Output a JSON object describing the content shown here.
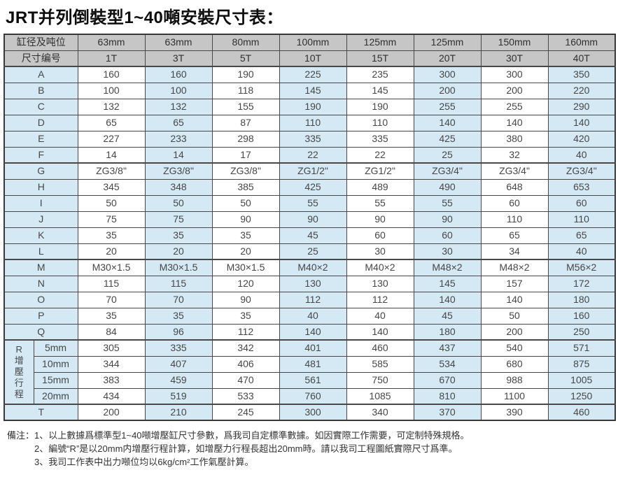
{
  "title": "JRT并列倒裝型1~40噸安裝尺寸表：",
  "colors": {
    "header_bg": "#c6c6c6",
    "cell_blue_bg": "#d5e9f5",
    "cell_white_bg": "#ffffff",
    "border": "#484848"
  },
  "table": {
    "header_rows": [
      {
        "label": "缸径及吨位",
        "cells": [
          "63mm",
          "63mm",
          "80mm",
          "100mm",
          "125mm",
          "125mm",
          "150mm",
          "160mm"
        ]
      },
      {
        "label": "尺寸编号",
        "cells": [
          "1T",
          "3T",
          "5T",
          "10T",
          "15T",
          "20T",
          "30T",
          "40T"
        ]
      }
    ],
    "rows": [
      {
        "label": "A",
        "values": [
          "160",
          "160",
          "190",
          "225",
          "235",
          "300",
          "300",
          "350"
        ]
      },
      {
        "label": "B",
        "values": [
          "100",
          "100",
          "118",
          "145",
          "145",
          "200",
          "200",
          "220"
        ]
      },
      {
        "label": "C",
        "values": [
          "132",
          "132",
          "155",
          "190",
          "190",
          "255",
          "255",
          "290"
        ]
      },
      {
        "label": "D",
        "values": [
          "65",
          "65",
          "87",
          "110",
          "110",
          "140",
          "140",
          "140"
        ]
      },
      {
        "label": "E",
        "values": [
          "227",
          "233",
          "298",
          "335",
          "335",
          "425",
          "380",
          "420"
        ]
      },
      {
        "label": "F",
        "values": [
          "14",
          "14",
          "17",
          "22",
          "22",
          "25",
          "32",
          "40"
        ]
      },
      {
        "label": "G",
        "group_start": true,
        "values": [
          "ZG3/8\"",
          "ZG3/8\"",
          "ZG3/8\"",
          "ZG1/2\"",
          "ZG1/2\"",
          "ZG3/4\"",
          "ZG3/4\"",
          "ZG3/4\""
        ]
      },
      {
        "label": "H",
        "values": [
          "345",
          "348",
          "385",
          "425",
          "489",
          "490",
          "648",
          "653"
        ]
      },
      {
        "label": "I",
        "values": [
          "50",
          "50",
          "50",
          "55",
          "55",
          "55",
          "60",
          "60"
        ]
      },
      {
        "label": "J",
        "values": [
          "75",
          "75",
          "90",
          "90",
          "90",
          "90",
          "110",
          "110"
        ]
      },
      {
        "label": "K",
        "values": [
          "35",
          "35",
          "35",
          "45",
          "60",
          "60",
          "65",
          "65"
        ]
      },
      {
        "label": "L",
        "values": [
          "20",
          "20",
          "20",
          "25",
          "30",
          "30",
          "34",
          "40"
        ]
      },
      {
        "label": "M",
        "group_start": true,
        "values": [
          "M30×1.5",
          "M30×1.5",
          "M30×1.5",
          "M40×2",
          "M40×2",
          "M48×2",
          "M48×2",
          "M56×2"
        ]
      },
      {
        "label": "N",
        "values": [
          "115",
          "115",
          "120",
          "130",
          "130",
          "145",
          "157",
          "172"
        ]
      },
      {
        "label": "O",
        "values": [
          "70",
          "70",
          "90",
          "112",
          "112",
          "140",
          "140",
          "180"
        ]
      },
      {
        "label": "P",
        "values": [
          "35",
          "35",
          "35",
          "40",
          "40",
          "45",
          "50",
          "160"
        ]
      },
      {
        "label": "Q",
        "values": [
          "84",
          "96",
          "112",
          "140",
          "140",
          "180",
          "200",
          "250"
        ]
      }
    ],
    "r_group": {
      "label": "R",
      "vertical_label": "增壓行程",
      "sub_rows": [
        {
          "label": "5mm",
          "values": [
            "305",
            "335",
            "342",
            "401",
            "460",
            "437",
            "540",
            "571"
          ]
        },
        {
          "label": "10mm",
          "values": [
            "344",
            "407",
            "406",
            "481",
            "585",
            "534",
            "680",
            "875"
          ]
        },
        {
          "label": "15mm",
          "values": [
            "383",
            "459",
            "470",
            "561",
            "750",
            "670",
            "988",
            "1005"
          ]
        },
        {
          "label": "20mm",
          "values": [
            "434",
            "519",
            "533",
            "760",
            "1085",
            "810",
            "1100",
            "1250"
          ]
        }
      ]
    },
    "t_row": {
      "label": "T",
      "values": [
        "200",
        "210",
        "245",
        "300",
        "340",
        "370",
        "390",
        "460"
      ]
    }
  },
  "notes": {
    "prefix": "備注：",
    "lines": [
      "1、以上數據爲標準型1~40噸增壓缸尺寸參數，爲我司自定標準數據。如因實際工作需要，可定制特殊規格。",
      "2、編號“R”是以20mm内增壓行程計算，如增壓力行程長超出20mm時。請以我司工程圖紙實際尺寸爲準。",
      "3、我司工作表中出力噸位均以6kg/cm²工作氣壓計算。"
    ]
  }
}
